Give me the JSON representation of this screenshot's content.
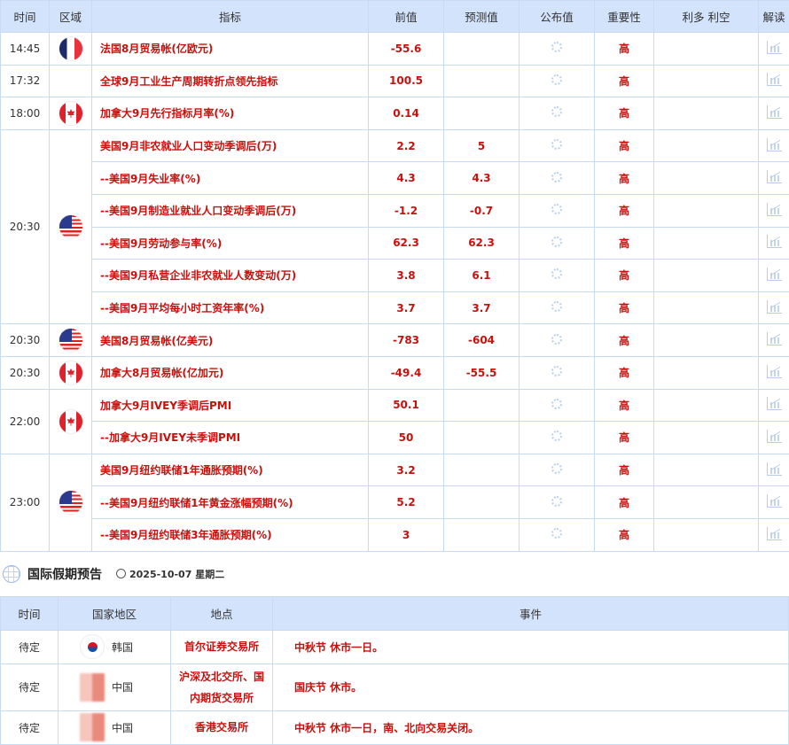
{
  "calendar": {
    "headers": [
      "时间",
      "区域",
      "指标",
      "前值",
      "预测值",
      "公布值",
      "重要性",
      "利多 利空",
      "解读"
    ],
    "groups": [
      {
        "time": "14:45",
        "flag": "france",
        "rows": [
          {
            "name": "法国8月贸易帐(亿欧元)",
            "prev": "-55.6",
            "forecast": "",
            "importance": "高"
          }
        ]
      },
      {
        "time": "17:32",
        "flag": "",
        "rows": [
          {
            "name": "全球9月工业生产周期转折点领先指标",
            "prev": "100.5",
            "forecast": "",
            "importance": "高"
          }
        ]
      },
      {
        "time": "18:00",
        "flag": "canada",
        "rows": [
          {
            "name": "加拿大9月先行指标月率(%)",
            "prev": "0.14",
            "forecast": "",
            "importance": "高"
          }
        ]
      },
      {
        "time": "20:30",
        "flag": "usa",
        "rows": [
          {
            "name": "美国9月非农就业人口变动季调后(万)",
            "prev": "2.2",
            "forecast": "5",
            "importance": "高"
          },
          {
            "name": "--美国9月失业率(%)",
            "prev": "4.3",
            "forecast": "4.3",
            "importance": "高"
          },
          {
            "name": "--美国9月制造业就业人口变动季调后(万)",
            "prev": "-1.2",
            "forecast": "-0.7",
            "importance": "高"
          },
          {
            "name": "--美国9月劳动参与率(%)",
            "prev": "62.3",
            "forecast": "62.3",
            "importance": "高"
          },
          {
            "name": "--美国9月私营企业非农就业人数变动(万)",
            "prev": "3.8",
            "forecast": "6.1",
            "importance": "高"
          },
          {
            "name": "--美国9月平均每小时工资年率(%)",
            "prev": "3.7",
            "forecast": "3.7",
            "importance": "高"
          }
        ]
      },
      {
        "time": "20:30",
        "flag": "usa",
        "rows": [
          {
            "name": "美国8月贸易帐(亿美元)",
            "prev": "-783",
            "forecast": "-604",
            "importance": "高"
          }
        ]
      },
      {
        "time": "20:30",
        "flag": "canada",
        "rows": [
          {
            "name": "加拿大8月贸易帐(亿加元)",
            "prev": "-49.4",
            "forecast": "-55.5",
            "importance": "高"
          }
        ]
      },
      {
        "time": "22:00",
        "flag": "canada",
        "rows": [
          {
            "name": "加拿大9月IVEY季调后PMI",
            "prev": "50.1",
            "forecast": "",
            "importance": "高"
          },
          {
            "name": "--加拿大9月IVEY未季调PMI",
            "prev": "50",
            "forecast": "",
            "importance": "高"
          }
        ]
      },
      {
        "time": "23:00",
        "flag": "usa",
        "rows": [
          {
            "name": "美国9月纽约联储1年通胀预期(%)",
            "prev": "3.2",
            "forecast": "",
            "importance": "高"
          },
          {
            "name": "--美国9月纽约联储1年黄金涨幅预期(%)",
            "prev": "5.2",
            "forecast": "",
            "importance": "高"
          },
          {
            "name": "--美国9月纽约联储3年通胀预期(%)",
            "prev": "3",
            "forecast": "",
            "importance": "高"
          }
        ]
      }
    ]
  },
  "holidays": {
    "title": "国际假期预告",
    "date": "2025-10-07 星期二",
    "headers": [
      "时间",
      "国家地区",
      "地点",
      "事件"
    ],
    "rows": [
      {
        "time": "待定",
        "flag": "korea",
        "country": "韩国",
        "place": "首尔证券交易所",
        "event": "中秋节 休市一日。"
      },
      {
        "time": "待定",
        "flag": "china",
        "country": "中国",
        "place": "沪深及北交所、国内期货交易所",
        "event": "国庆节 休市。"
      },
      {
        "time": "待定",
        "flag": "china",
        "country": "中国",
        "place": "香港交易所",
        "event": "中秋节 休市一日，南、北向交易关闭。"
      }
    ]
  },
  "colors": {
    "accent": "#c8100d",
    "header_bg": "#d3e3fb",
    "border": "#c9dbf3"
  }
}
